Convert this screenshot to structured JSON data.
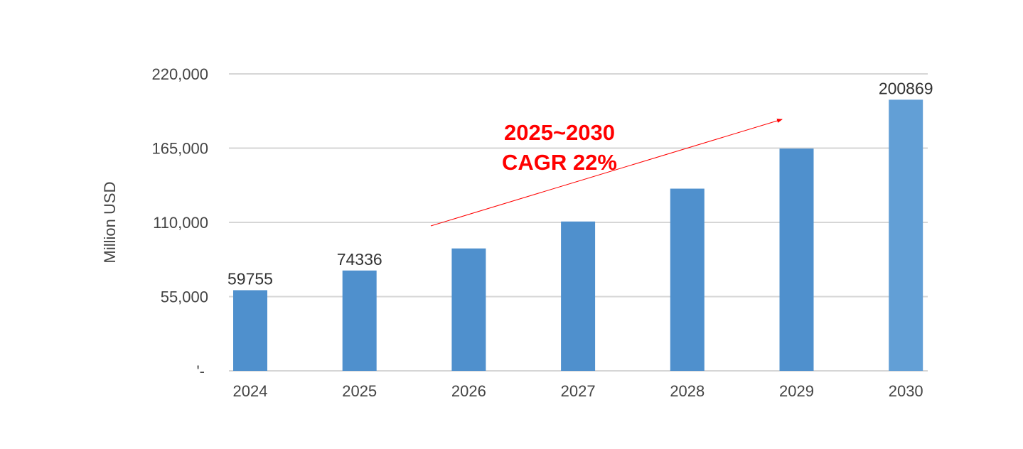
{
  "chart_data": {
    "type": "bar",
    "title": "",
    "xlabel": "",
    "ylabel": "Million USD",
    "ylim": [
      0,
      220000
    ],
    "yticks": [
      0,
      55000,
      110000,
      165000,
      220000
    ],
    "ytick_labels": [
      "'-",
      "55,000",
      "110,000",
      "165,000",
      "220,000"
    ],
    "grid": true,
    "categories": [
      "2024",
      "2025",
      "2026",
      "2027",
      "2028",
      "2029",
      "2030"
    ],
    "values": [
      59755,
      74336,
      90690,
      110642,
      134983,
      164679,
      200869
    ],
    "data_labels": [
      "59755",
      "74336",
      "",
      "",
      "",
      "",
      "200869"
    ],
    "colors": [
      "#4f90cd",
      "#4f90cd",
      "#4f90cd",
      "#4f90cd",
      "#4f90cd",
      "#4f90cd",
      "#629fd6"
    ],
    "annotation": {
      "lines": [
        "2025~2030",
        "CAGR 22%"
      ],
      "color": "#ff0000",
      "arrow": true
    }
  }
}
